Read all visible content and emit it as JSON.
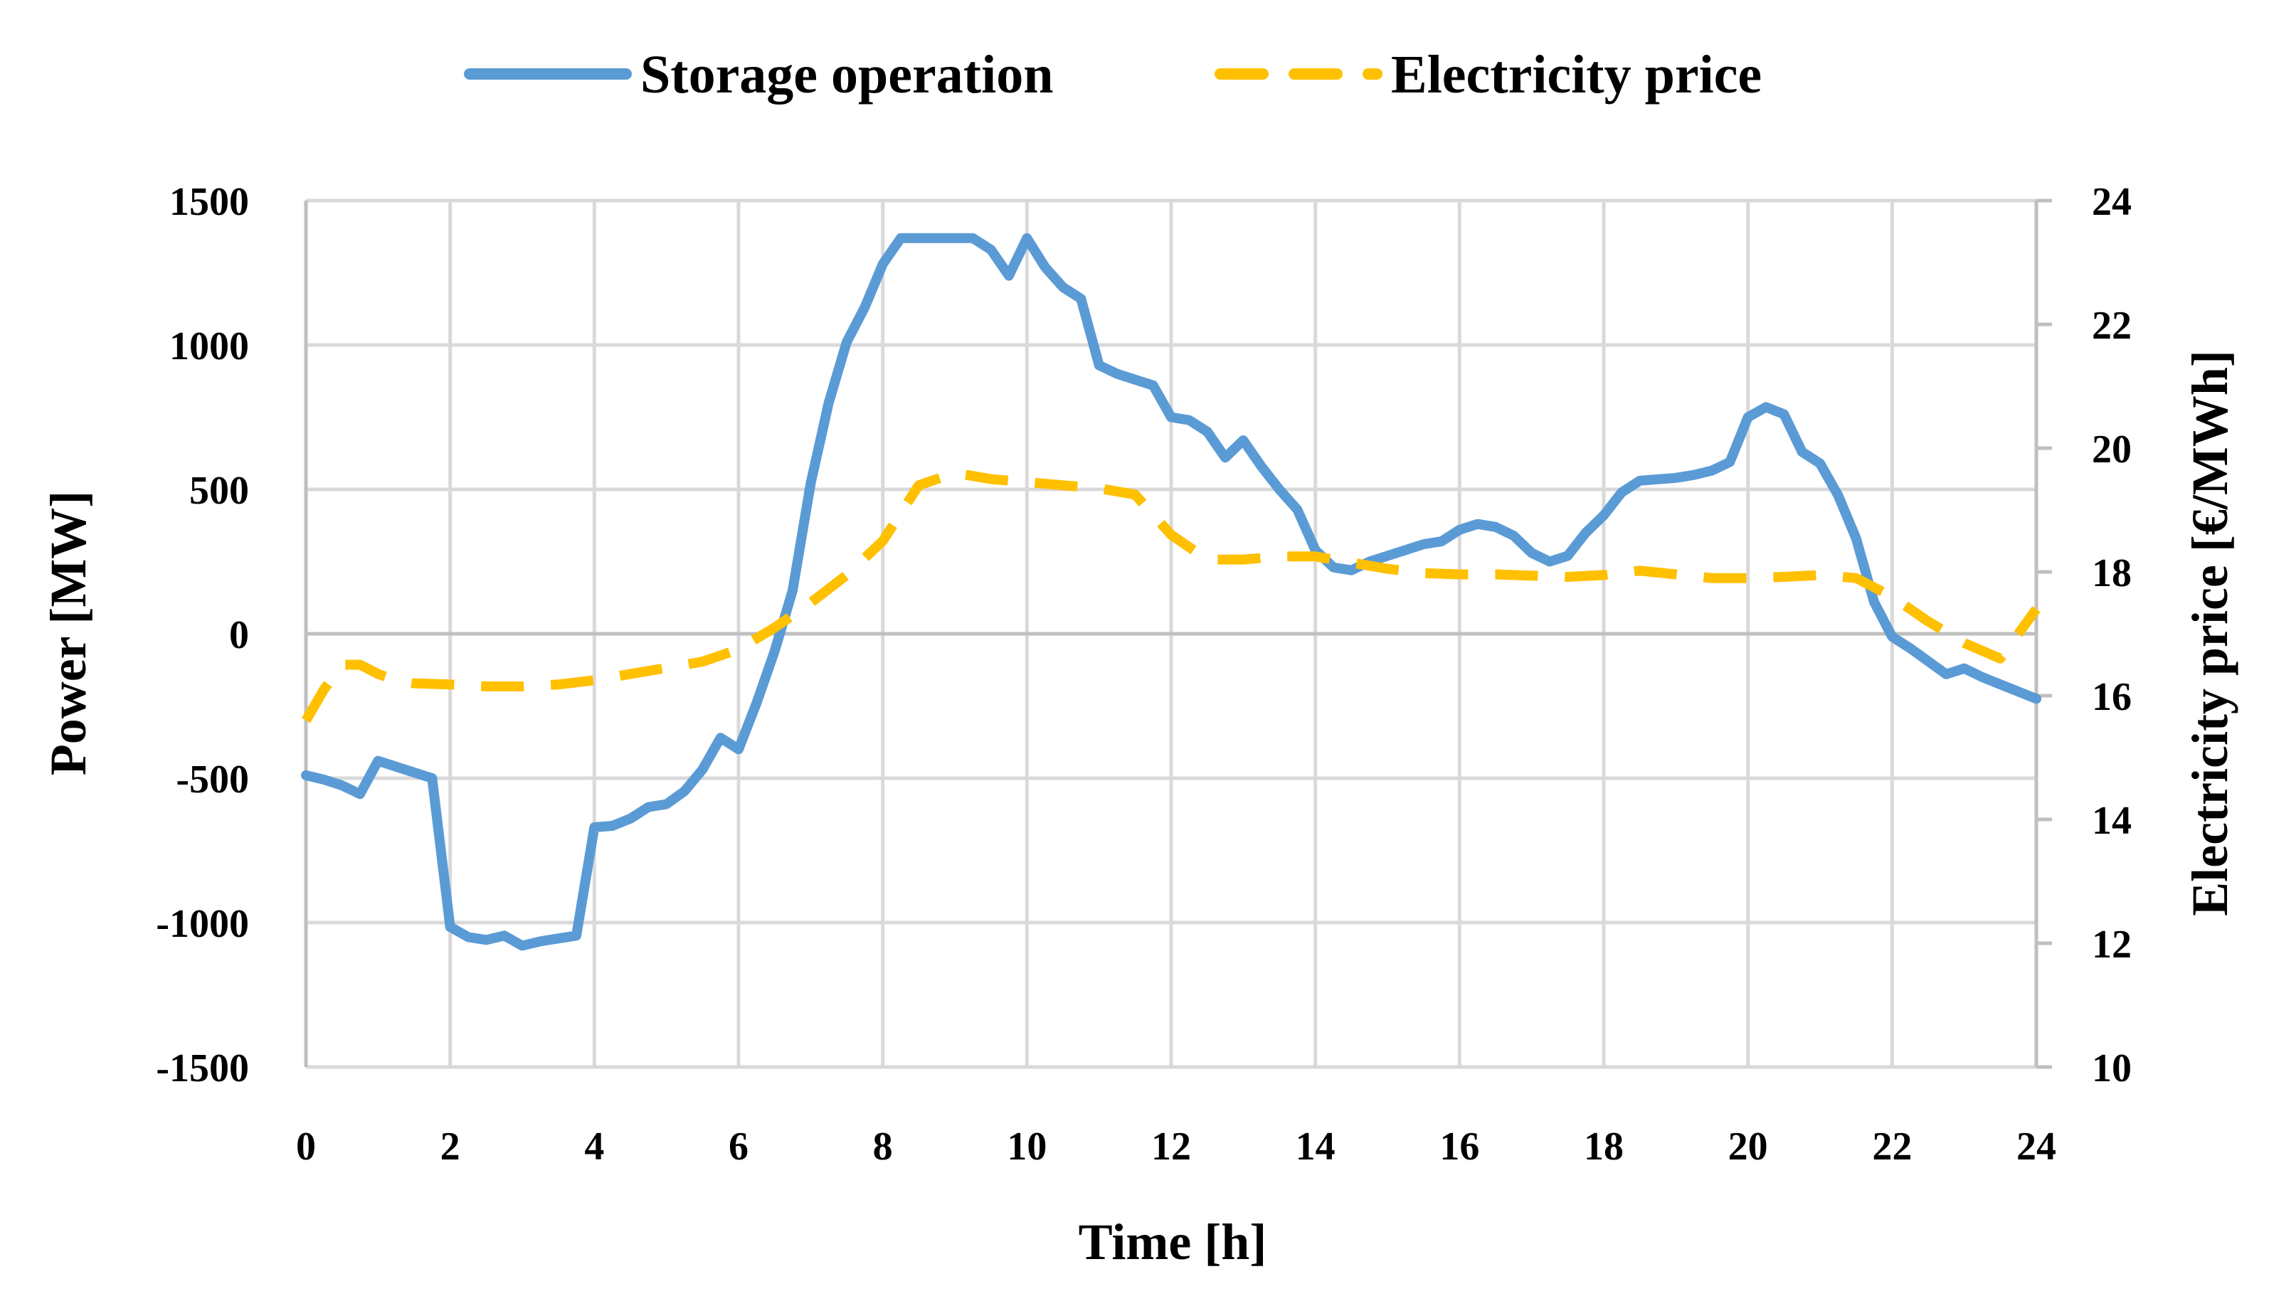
{
  "chart_data": {
    "type": "line",
    "xlabel": "Time [h]",
    "ylabel_left": "Power [MW]",
    "ylabel_right": "Electricity price [€/MWh]",
    "xlim": [
      0,
      24
    ],
    "ylim_left": [
      -1500,
      1500
    ],
    "ylim_right": [
      10,
      24
    ],
    "x_ticks": [
      "0",
      "2",
      "4",
      "6",
      "8",
      "10",
      "12",
      "14",
      "16",
      "18",
      "20",
      "22",
      "24"
    ],
    "y_left_ticks": [
      "1500",
      "1000",
      "500",
      "0",
      "-500",
      "-1000",
      "-1500"
    ],
    "y_right_ticks": [
      "24",
      "22",
      "20",
      "18",
      "16",
      "14",
      "12",
      "10"
    ],
    "grid": true,
    "legend_position": "top",
    "series": [
      {
        "name": "Storage operation",
        "axis": "left",
        "color": "#5b9bd5",
        "style": "solid",
        "x": [
          0,
          0.25,
          0.5,
          0.75,
          1,
          1.25,
          1.5,
          1.75,
          2,
          2.25,
          2.5,
          2.75,
          3,
          3.25,
          3.5,
          3.75,
          4,
          4.25,
          4.5,
          4.75,
          5,
          5.25,
          5.5,
          5.75,
          6,
          6.25,
          6.5,
          6.75,
          7,
          7.25,
          7.5,
          7.75,
          8,
          8.25,
          8.5,
          8.75,
          9,
          9.25,
          9.5,
          9.75,
          10,
          10.25,
          10.5,
          10.75,
          11,
          11.25,
          11.5,
          11.75,
          12,
          12.25,
          12.5,
          12.75,
          13,
          13.25,
          13.5,
          13.75,
          14,
          14.25,
          14.5,
          14.75,
          15,
          15.25,
          15.5,
          15.75,
          16,
          16.25,
          16.5,
          16.75,
          17,
          17.25,
          17.5,
          17.75,
          18,
          18.25,
          18.5,
          18.75,
          19,
          19.25,
          19.5,
          19.75,
          20,
          20.25,
          20.5,
          20.75,
          21,
          21.25,
          21.5,
          21.75,
          22,
          22.25,
          22.5,
          22.75,
          23,
          23.25,
          23.5,
          23.75,
          24
        ],
        "values": [
          -490,
          -505,
          -525,
          -555,
          -440,
          -460,
          -480,
          -500,
          -1015,
          -1050,
          -1060,
          -1045,
          -1080,
          -1065,
          -1055,
          -1045,
          -670,
          -665,
          -640,
          -600,
          -590,
          -545,
          -470,
          -360,
          -400,
          -240,
          -60,
          150,
          520,
          800,
          1010,
          1130,
          1280,
          1370,
          1370,
          1370,
          1370,
          1370,
          1330,
          1240,
          1370,
          1270,
          1200,
          1160,
          930,
          900,
          880,
          860,
          750,
          740,
          700,
          610,
          670,
          580,
          500,
          430,
          290,
          230,
          220,
          250,
          270,
          290,
          310,
          320,
          360,
          380,
          370,
          340,
          280,
          250,
          270,
          350,
          410,
          490,
          530,
          535,
          540,
          550,
          565,
          595,
          750,
          785,
          760,
          630,
          590,
          480,
          330,
          110,
          -10,
          -50,
          -95,
          -140,
          -120,
          -150,
          -175,
          -200,
          -225
        ]
      },
      {
        "name": "Electricity price",
        "axis": "right",
        "color": "#ffc000",
        "style": "dashed",
        "x": [
          0,
          0.25,
          0.5,
          0.75,
          1,
          1.25,
          1.5,
          2,
          2.5,
          3,
          3.5,
          4,
          4.5,
          5,
          5.5,
          6,
          6.5,
          7,
          7.5,
          8,
          8.5,
          9,
          9.5,
          10,
          10.5,
          11,
          11.5,
          12,
          12.5,
          13,
          13.5,
          14,
          14.5,
          15,
          15.5,
          16,
          16.5,
          17,
          17.5,
          18,
          18.5,
          19,
          19.5,
          20,
          20.5,
          21,
          21.5,
          22,
          22.5,
          23,
          23.5,
          24
        ],
        "values": [
          15.6,
          16.1,
          16.5,
          16.5,
          16.35,
          16.25,
          16.2,
          16.18,
          16.15,
          16.15,
          16.18,
          16.25,
          16.35,
          16.45,
          16.55,
          16.75,
          17.1,
          17.5,
          17.95,
          18.5,
          19.4,
          19.6,
          19.5,
          19.45,
          19.4,
          19.35,
          19.25,
          18.6,
          18.2,
          18.2,
          18.25,
          18.25,
          18.15,
          18.05,
          17.98,
          17.96,
          17.96,
          17.94,
          17.92,
          17.95,
          18.02,
          17.96,
          17.9,
          17.9,
          17.92,
          17.95,
          17.9,
          17.6,
          17.2,
          16.85,
          16.6,
          17.4
        ]
      }
    ]
  }
}
